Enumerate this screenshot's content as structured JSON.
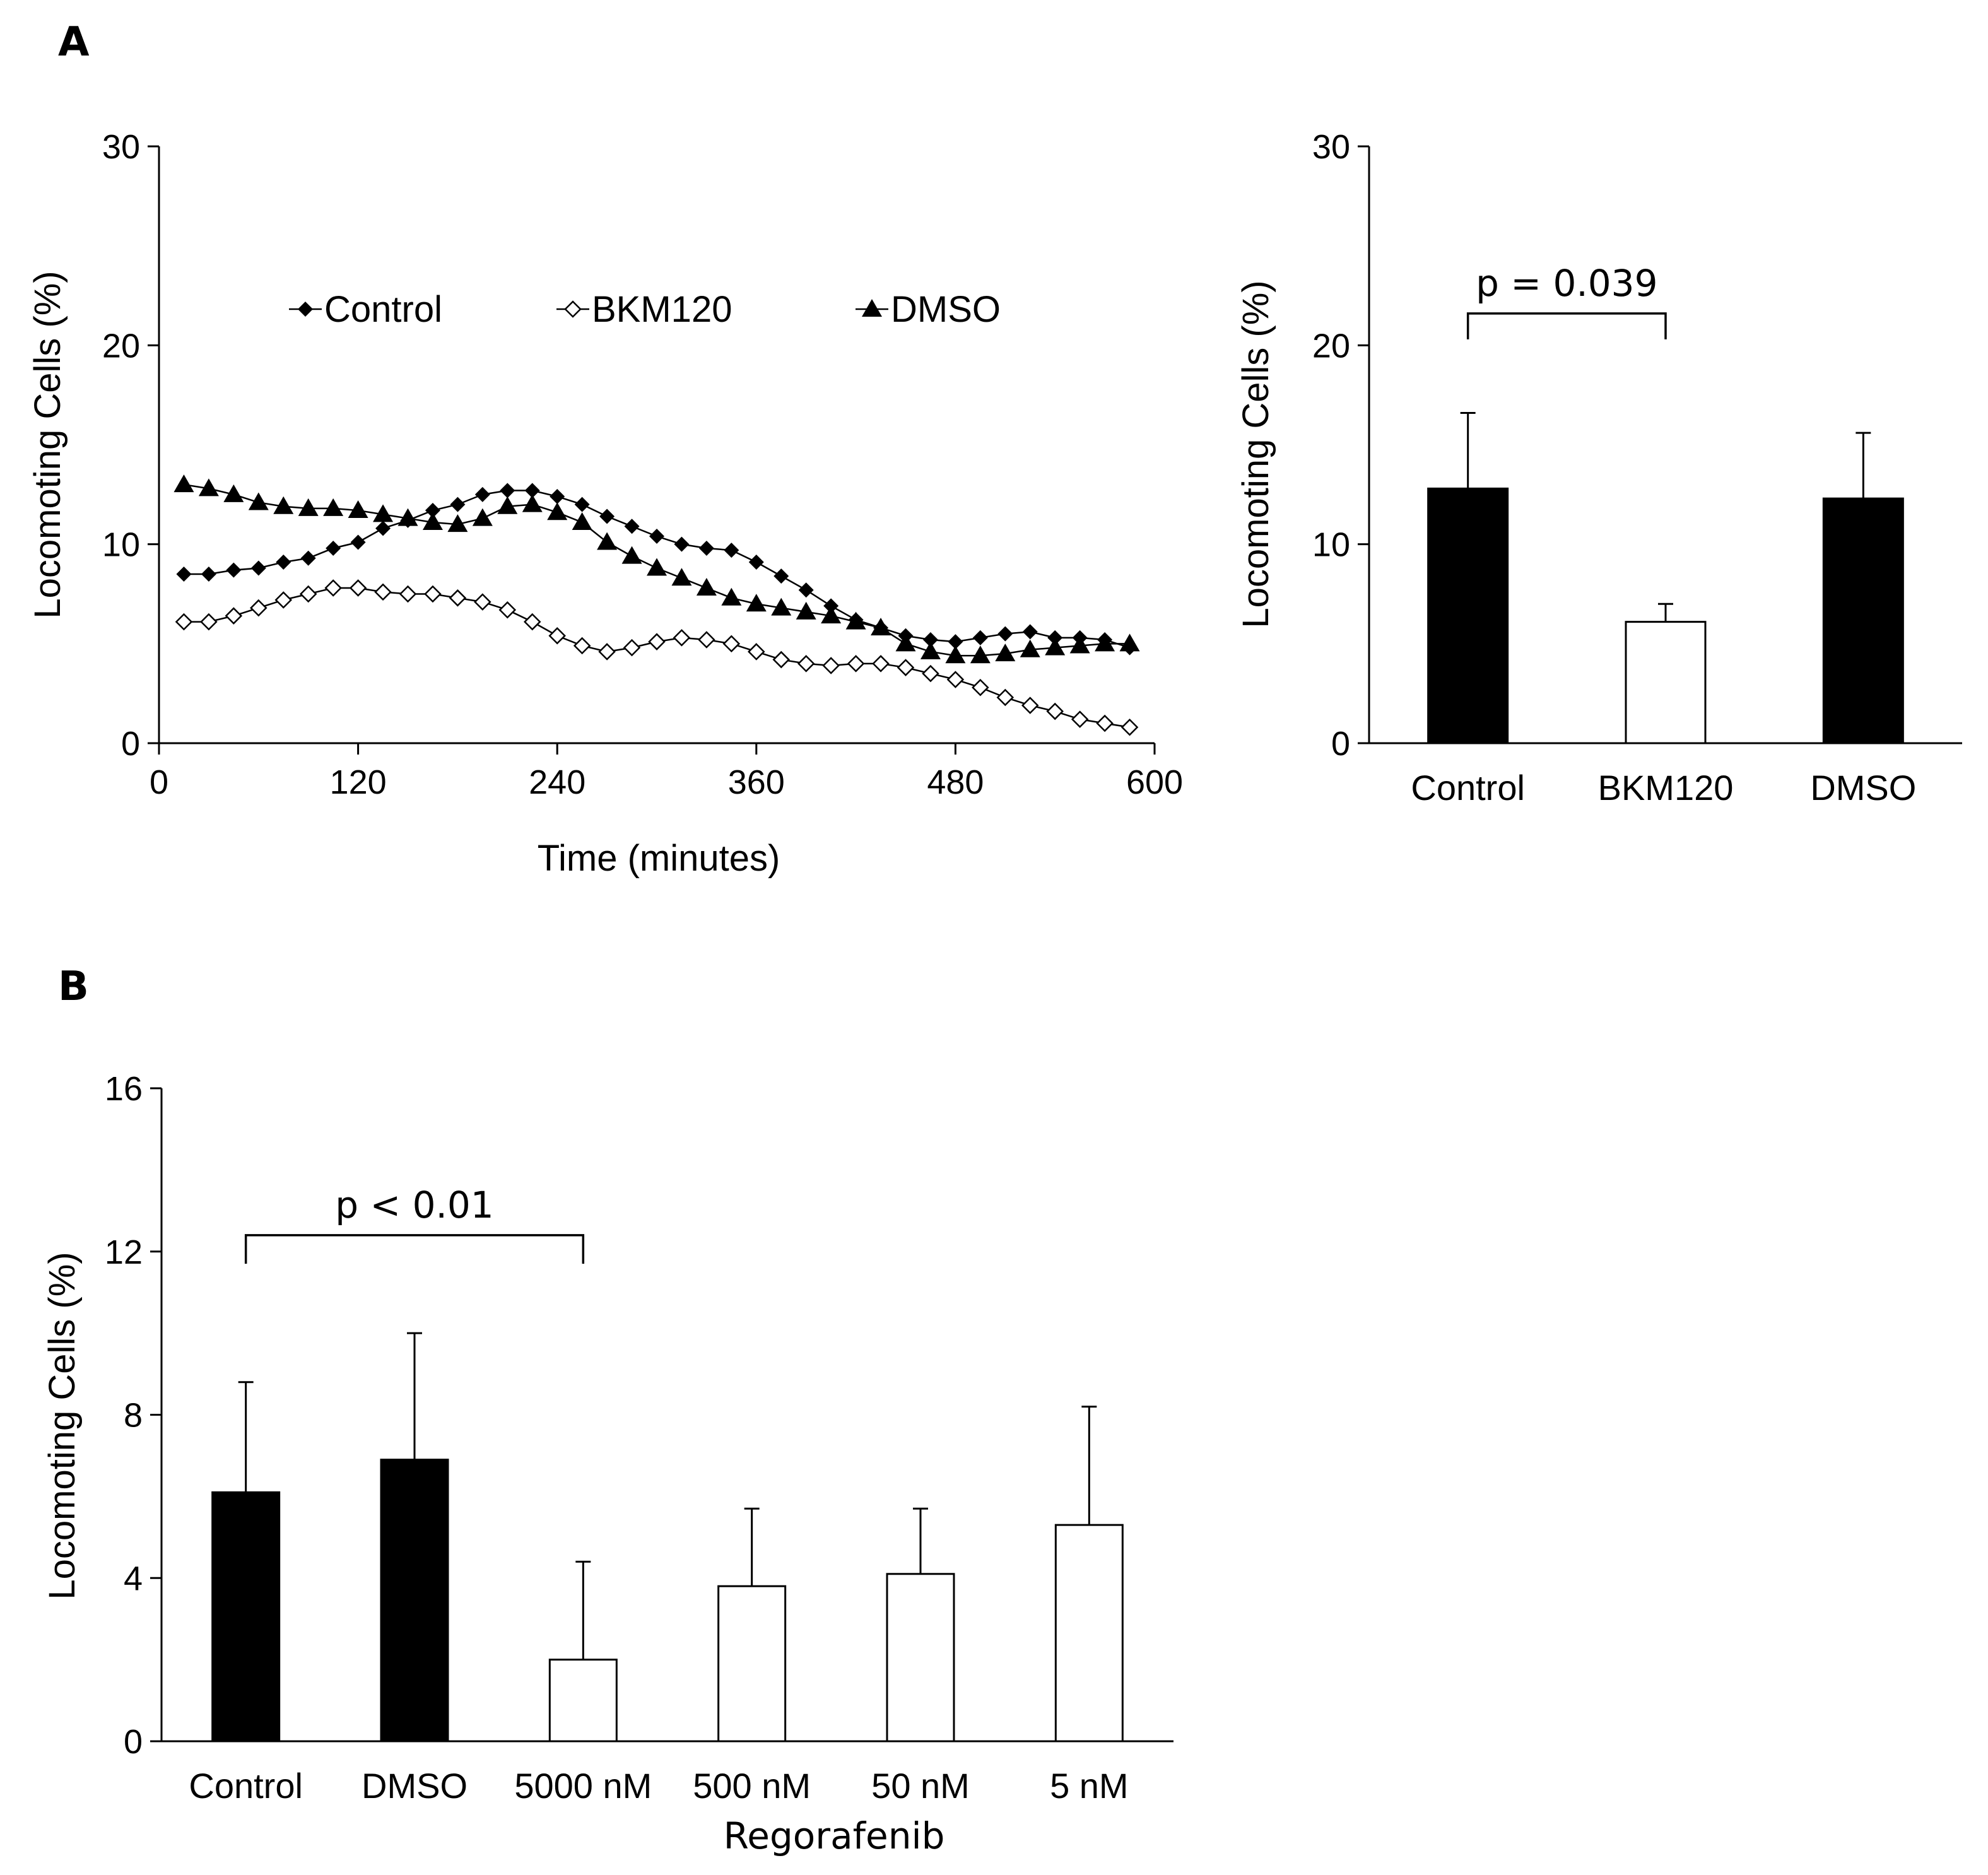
{
  "panels": {
    "a_label": "A",
    "b_label": "B"
  },
  "colors": {
    "axis": "#000000",
    "filled": "#000000",
    "open": "#ffffff",
    "line": "#000000"
  },
  "chart_data": [
    {
      "id": "A-line",
      "type": "line",
      "xlabel": "Time (minutes)",
      "ylabel": "Locomoting Cells (%)",
      "xlim": [
        0,
        600
      ],
      "ylim": [
        0,
        30
      ],
      "xticks": [
        "0",
        "120",
        "240",
        "360",
        "480",
        "600"
      ],
      "yticks": [
        "0",
        "10",
        "20",
        "30"
      ],
      "legend_position": "top",
      "x": [
        15,
        30,
        45,
        60,
        75,
        90,
        105,
        120,
        135,
        150,
        165,
        180,
        195,
        210,
        225,
        240,
        255,
        270,
        285,
        300,
        315,
        330,
        345,
        360,
        375,
        390,
        405,
        420,
        435,
        450,
        465,
        480,
        495,
        510,
        525,
        540,
        555,
        570,
        585
      ],
      "series": [
        {
          "name": "Control",
          "marker": "filled-diamond",
          "values": [
            8.5,
            8.5,
            8.7,
            8.8,
            9.1,
            9.3,
            9.8,
            10.1,
            10.8,
            11.2,
            11.7,
            12.0,
            12.5,
            12.7,
            12.7,
            12.4,
            12.0,
            11.4,
            10.9,
            10.4,
            10.0,
            9.8,
            9.7,
            9.1,
            8.4,
            7.7,
            6.9,
            6.2,
            5.8,
            5.4,
            5.2,
            5.1,
            5.3,
            5.5,
            5.6,
            5.3,
            5.3,
            5.2,
            4.8
          ]
        },
        {
          "name": "BKM120",
          "marker": "open-diamond",
          "values": [
            6.1,
            6.1,
            6.4,
            6.8,
            7.2,
            7.5,
            7.8,
            7.8,
            7.6,
            7.5,
            7.5,
            7.3,
            7.1,
            6.7,
            6.1,
            5.4,
            4.9,
            4.6,
            4.8,
            5.1,
            5.3,
            5.2,
            5.0,
            4.6,
            4.2,
            4.0,
            3.9,
            4.0,
            4.0,
            3.8,
            3.5,
            3.2,
            2.8,
            2.3,
            1.9,
            1.6,
            1.2,
            1.0,
            0.8
          ]
        },
        {
          "name": "DMSO",
          "marker": "filled-triangle",
          "values": [
            13.0,
            12.8,
            12.5,
            12.1,
            11.9,
            11.8,
            11.8,
            11.7,
            11.5,
            11.3,
            11.1,
            11.0,
            11.3,
            11.9,
            12.0,
            11.6,
            11.1,
            10.1,
            9.4,
            8.8,
            8.3,
            7.8,
            7.3,
            7.0,
            6.8,
            6.6,
            6.4,
            6.1,
            5.8,
            5.0,
            4.6,
            4.4,
            4.4,
            4.5,
            4.7,
            4.8,
            4.9,
            5.0,
            5.0
          ]
        }
      ]
    },
    {
      "id": "A-bar",
      "type": "bar",
      "ylabel": "Locomoting Cells (%)",
      "ylim": [
        0,
        30
      ],
      "yticks": [
        "0",
        "10",
        "20",
        "30"
      ],
      "categories": [
        "Control",
        "BKM120",
        "DMSO"
      ],
      "values": [
        12.8,
        6.1,
        12.3
      ],
      "errors": [
        3.8,
        0.9,
        3.3
      ],
      "fills": [
        "filled",
        "open",
        "filled"
      ],
      "annotation": {
        "text": "p = 0.039",
        "from": 0,
        "to": 1,
        "bracket_y": 21.6,
        "bracket_drop": 1.3
      }
    },
    {
      "id": "B-bar",
      "type": "bar",
      "ylabel": "Locomoting Cells (%)",
      "xlabel": "Regorafenib",
      "ylim": [
        0,
        16
      ],
      "yticks": [
        "0",
        "4",
        "8",
        "12",
        "16"
      ],
      "categories": [
        "Control",
        "DMSO",
        "5000 nM",
        "500 nM",
        "50 nM",
        "5 nM"
      ],
      "values": [
        6.1,
        6.9,
        2.0,
        3.8,
        4.1,
        5.3
      ],
      "errors": [
        2.7,
        3.1,
        2.4,
        1.9,
        1.6,
        2.9
      ],
      "fills": [
        "filled",
        "filled",
        "open",
        "open",
        "open",
        "open"
      ],
      "annotation": {
        "text": "p < 0.01",
        "from": 0,
        "to": 2,
        "bracket_y": 12.4,
        "bracket_drop": 0.7
      }
    }
  ]
}
